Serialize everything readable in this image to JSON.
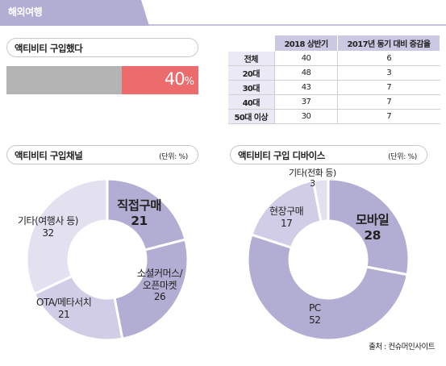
{
  "header": {
    "title": "해외여행"
  },
  "activity_purchase": {
    "title": "액티비티 구입했다",
    "value_text": "40",
    "unit_text": "%",
    "value_fraction": 0.4
  },
  "table": {
    "headers": [
      "",
      "2018 상반기",
      "2017년 동기 대비 증감율"
    ],
    "rows": [
      [
        "전체",
        "40",
        "6"
      ],
      [
        "20대",
        "48",
        "3"
      ],
      [
        "30대",
        "43",
        "7"
      ],
      [
        "40대",
        "37",
        "7"
      ],
      [
        "50대 이상",
        "30",
        "7"
      ]
    ]
  },
  "chart_data": [
    {
      "type": "pie",
      "title": "액티비티 구입채널",
      "unit": "(단위: %)",
      "labels": [
        "직접구매",
        "소셜커머스/오픈마켓",
        "OTA/메타서치",
        "기타(여행사 등)"
      ],
      "values": [
        21,
        26,
        21,
        32
      ],
      "colors": [
        "#b2add3",
        "#b2add3",
        "#d1cde6",
        "#e3e0f0"
      ]
    },
    {
      "type": "pie",
      "title": "액티비티 구입 디바이스",
      "unit": "(단위: %)",
      "labels": [
        "모바일",
        "PC",
        "현장구매",
        "기타(전화 등)"
      ],
      "values": [
        28,
        52,
        17,
        3
      ],
      "colors": [
        "#b2add3",
        "#b2add3",
        "#d1cde6",
        "#e3e0f0"
      ]
    }
  ],
  "source": "출처 : 컨슈머인사이트",
  "colors": {
    "header": "#b2add3",
    "bar_gray": "#b4b4b4",
    "bar_red": "#ec6c6d",
    "table_header": "#cbc8e4"
  }
}
